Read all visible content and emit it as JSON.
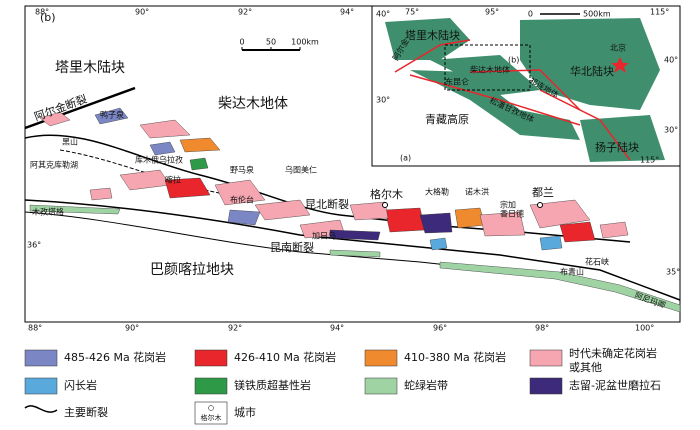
{
  "map": {
    "panel_label": "(b)",
    "top_lon_ticks": [
      "88°",
      "90°",
      "92°",
      "94°"
    ],
    "bottom_lon_ticks": [
      "88°",
      "90°",
      "92°",
      "94°",
      "96°",
      "98°",
      "100°"
    ],
    "lat_ticks": [
      "36°",
      "35°"
    ],
    "scale": [
      "0",
      "50",
      "100km"
    ],
    "regions": [
      "塔里木陆块",
      "柴达木地体",
      "巴颜喀拉地块"
    ],
    "faults": [
      "阿尔金断裂",
      "昆北断裂",
      "昆南断裂"
    ],
    "cities": [
      "格尔木",
      "都兰"
    ],
    "places": [
      "鸭子泉",
      "黑山",
      "阿其克库勒湖",
      "库木俄乌拉孜",
      "喀拉",
      "野马泉",
      "乌图美仁",
      "布伦台",
      "木孜塔格",
      "加日乌",
      "大格勒",
      "诺木洪",
      "宗加",
      "香日德",
      "布青山",
      "花石峡",
      "阿尼玛卿"
    ]
  },
  "inset": {
    "panel_label": "(a)",
    "box_label": "(b)",
    "ticks": [
      "40°",
      "75°",
      "95°",
      "115°",
      "30°",
      "40°",
      "30°",
      "115°"
    ],
    "scale": [
      "0",
      "500km"
    ],
    "labels": [
      "塔里木陆块",
      "北京",
      "华北陆块",
      "柴达木地体",
      "东昆仑",
      "祁连地体",
      "阿尔金",
      "松潘甘孜地体",
      "青藏高原",
      "扬子陆块"
    ]
  },
  "legend": {
    "items": [
      "485-426 Ma 花岗岩",
      "426-410 Ma 花岗岩",
      "410-380 Ma 花岗岩"
    ],
    "undetermined": [
      "时代未确定花岗岩",
      "或其他"
    ],
    "items2": [
      "闪长岩",
      "镁铁质超基性岩",
      "蛇绿岩带",
      "志留-泥盆世磨拉石"
    ],
    "fault": "主要断裂",
    "city_sample": "格尔木",
    "city": "城市"
  }
}
